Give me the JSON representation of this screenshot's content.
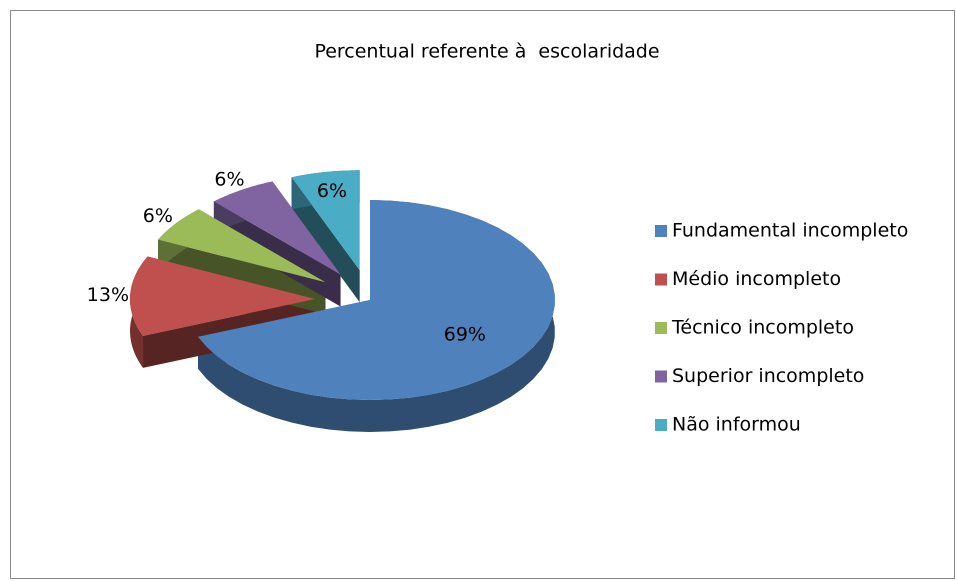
{
  "chart_data": {
    "type": "pie",
    "title": "Percentual referente à  escolaridade",
    "categories": [
      "Fundamental incompleto",
      "Médio incompleto",
      "Técnico incompleto",
      "Superior incompleto",
      "Não informou"
    ],
    "values": [
      69,
      13,
      6,
      6,
      6
    ],
    "value_labels": [
      "69%",
      "13%",
      "6%",
      "6%",
      "6%"
    ],
    "colors": [
      "#4f81bd",
      "#c0504d",
      "#9bbb59",
      "#8064a2",
      "#4bacc6"
    ],
    "legend": "right"
  }
}
